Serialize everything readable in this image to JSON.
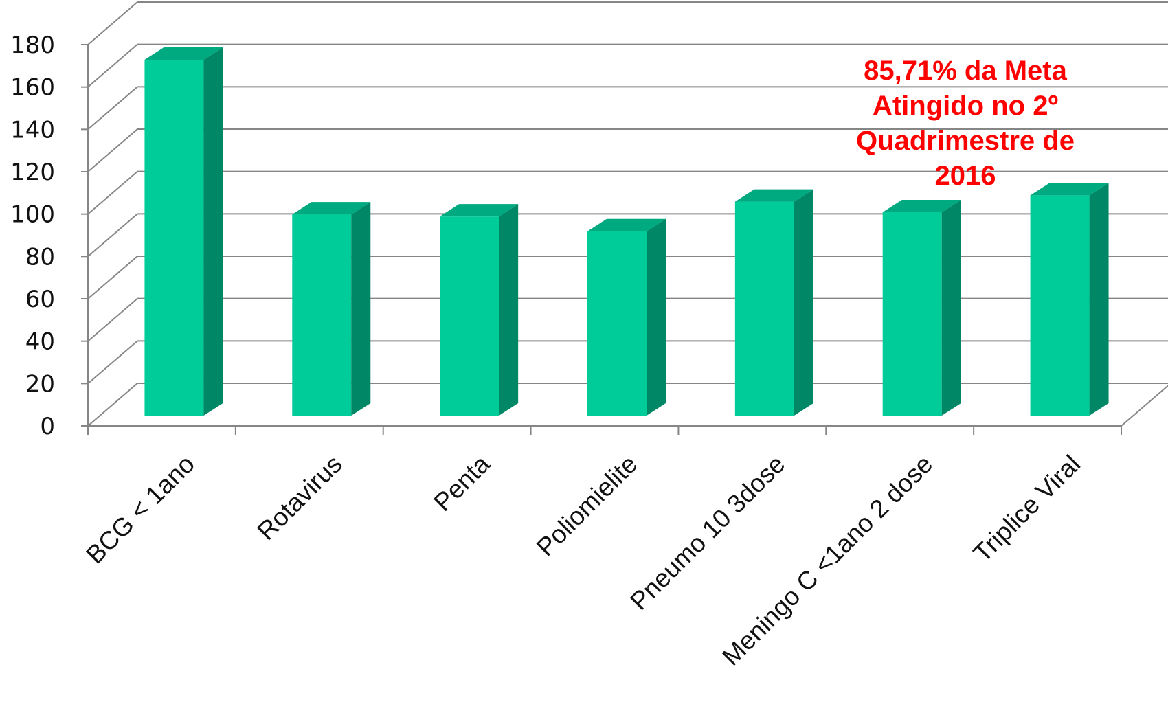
{
  "chart_data": {
    "type": "bar",
    "style": "3d-column",
    "categories": [
      "BCG < 1ano",
      "Rotavirus",
      "Penta",
      "Poliomielite",
      "Pneumo 10 3dose",
      "Meningo C <1ano 2 dose",
      "Triplice Viral"
    ],
    "values": [
      168,
      95,
      94,
      87,
      101,
      96,
      104
    ],
    "ylim": [
      0,
      180
    ],
    "yticks": [
      0,
      20,
      40,
      60,
      80,
      100,
      120,
      140,
      160,
      180
    ],
    "grid": true,
    "legend": "none",
    "annotation": {
      "lines": [
        "85,71% da Meta",
        "Atingido no 2º",
        "Quadrimestre de",
        "2016"
      ],
      "color": "#ff0000"
    },
    "colors": {
      "bar_front": "#00cc99",
      "bar_side": "#008866",
      "bar_top": "#00aa80",
      "grid": "#868686",
      "axis": "#868686"
    }
  }
}
